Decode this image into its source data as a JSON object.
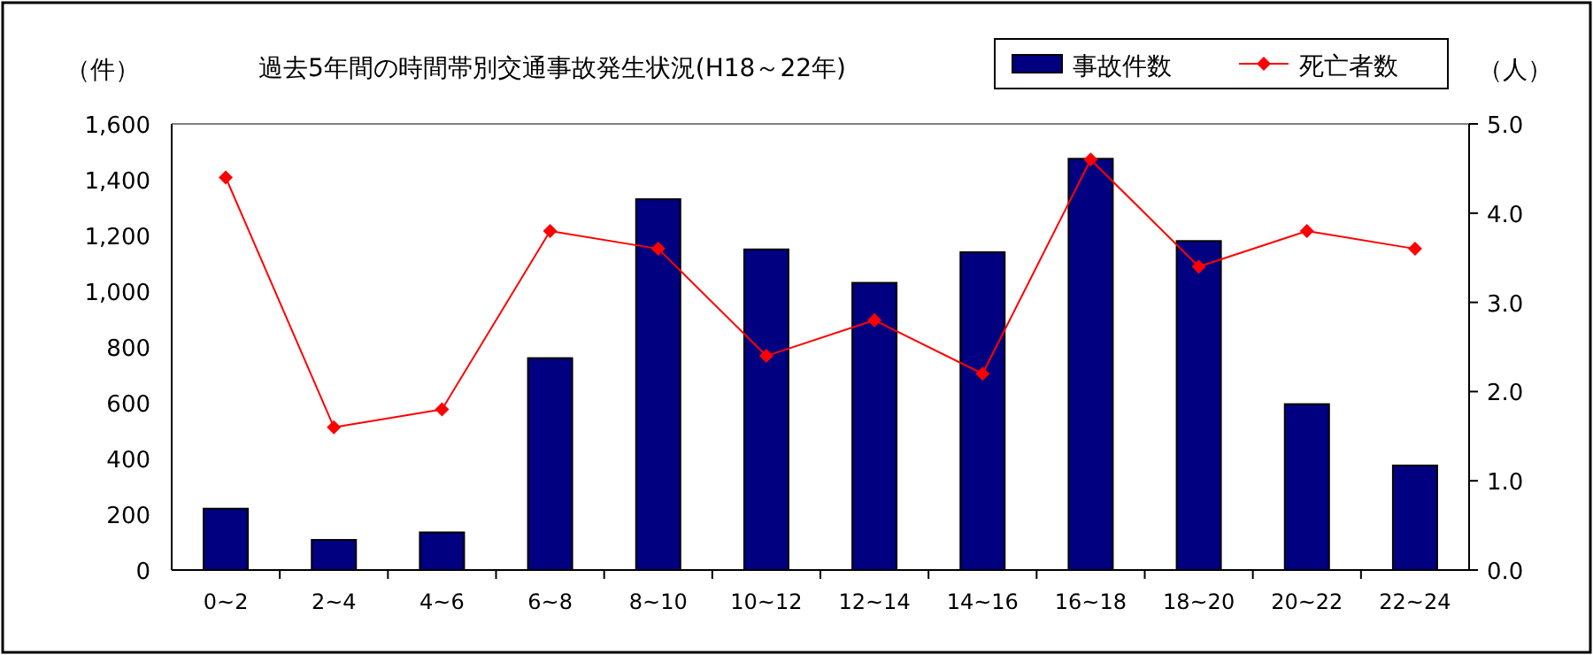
{
  "chart_data": {
    "type": "bar",
    "title": "過去5年間の時間帯別交通事故発生状況(H18～22年)",
    "ylabel": "（件）",
    "y2label": "（人）",
    "categories": [
      "0~2",
      "2~4",
      "4~6",
      "6~8",
      "8~10",
      "10~12",
      "12~14",
      "14~16",
      "16~18",
      "18~20",
      "20~22",
      "22~24"
    ],
    "series": [
      {
        "name": "事故件数",
        "color": "#000080",
        "values": [
          220,
          108,
          135,
          760,
          1330,
          1150,
          1030,
          1140,
          1475,
          1180,
          595,
          375
        ]
      },
      {
        "name": "死亡者数",
        "type": "line",
        "axis": "y2",
        "color": "#ff0000",
        "marker": "diamond",
        "values": [
          4.4,
          1.6,
          1.8,
          3.8,
          3.6,
          2.4,
          2.8,
          2.2,
          4.6,
          3.4,
          3.8,
          3.6
        ]
      }
    ],
    "ylim": [
      0,
      1600
    ],
    "yticks": [
      {
        "value": 0,
        "label": "0"
      },
      {
        "value": 200,
        "label": "200"
      },
      {
        "value": 400,
        "label": "400"
      },
      {
        "value": 600,
        "label": "600"
      },
      {
        "value": 800,
        "label": "800"
      },
      {
        "value": 1000,
        "label": "1,000"
      },
      {
        "value": 1200,
        "label": "1,200"
      },
      {
        "value": 1400,
        "label": "1,400"
      },
      {
        "value": 1600,
        "label": "1,600"
      }
    ],
    "y2lim": [
      0,
      5
    ],
    "y2ticks": [
      {
        "value": 0,
        "label": "0.0"
      },
      {
        "value": 1,
        "label": "1.0"
      },
      {
        "value": 2,
        "label": "2.0"
      },
      {
        "value": 3,
        "label": "3.0"
      },
      {
        "value": 4,
        "label": "4.0"
      },
      {
        "value": 5,
        "label": "5.0"
      }
    ],
    "legend": "top right",
    "grid": false
  }
}
